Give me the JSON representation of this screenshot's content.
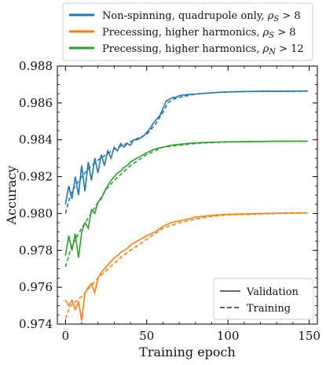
{
  "chart_data": {
    "type": "line",
    "title": "",
    "xlabel": "Training epoch",
    "ylabel": "Accuracy",
    "xlim": [
      -5,
      155
    ],
    "ylim": [
      0.974,
      0.988
    ],
    "xticks": [
      0,
      50,
      100,
      150
    ],
    "yticks": [
      0.974,
      0.976,
      0.978,
      0.98,
      0.982,
      0.984,
      0.986,
      0.988
    ],
    "ytick_labels": [
      "0.974",
      "0.976",
      "0.978",
      "0.980",
      "0.982",
      "0.984",
      "0.986",
      "0.988"
    ],
    "grid": false,
    "legend_top": {
      "placement": "above plot",
      "entries": [
        {
          "prefix": "Non-spinning, quadrupole only, ",
          "var": "ρ",
          "sub": "S",
          "suffix": " > 8",
          "color": "#1f77b4"
        },
        {
          "prefix": "Precessing, higher harmonics, ",
          "var": "ρ",
          "sub": "S",
          "suffix": " > 8",
          "color": "#ff7f0e"
        },
        {
          "prefix": "Precessing, higher harmonics, ",
          "var": "ρ",
          "sub": "N",
          "suffix": " > 12",
          "color": "#2ca02c"
        }
      ]
    },
    "legend_style": {
      "placement": "lower right",
      "entries": [
        {
          "label": "Validation",
          "linestyle": "solid",
          "color": "#666666"
        },
        {
          "label": "Training",
          "linestyle": "dashed",
          "color": "#666666"
        }
      ]
    },
    "series": [
      {
        "color": "#1f77b4",
        "validation": [
          [
            0,
            0.9805
          ],
          [
            2,
            0.9815
          ],
          [
            4,
            0.9808
          ],
          [
            6,
            0.982
          ],
          [
            8,
            0.981
          ],
          [
            10,
            0.9826
          ],
          [
            12,
            0.9812
          ],
          [
            14,
            0.9828
          ],
          [
            16,
            0.9818
          ],
          [
            18,
            0.983
          ],
          [
            20,
            0.9822
          ],
          [
            22,
            0.9832
          ],
          [
            24,
            0.9826
          ],
          [
            26,
            0.9834
          ],
          [
            28,
            0.983
          ],
          [
            30,
            0.9836
          ],
          [
            32,
            0.9834
          ],
          [
            34,
            0.9838
          ],
          [
            36,
            0.9836
          ],
          [
            38,
            0.9838
          ],
          [
            40,
            0.9837
          ],
          [
            42,
            0.984
          ],
          [
            44,
            0.984
          ],
          [
            46,
            0.9841
          ],
          [
            48,
            0.9842
          ],
          [
            50,
            0.9844
          ],
          [
            52,
            0.9846
          ],
          [
            54,
            0.9849
          ],
          [
            56,
            0.9851
          ],
          [
            58,
            0.9853
          ],
          [
            60,
            0.9857
          ],
          [
            62,
            0.9861
          ],
          [
            64,
            0.9862
          ],
          [
            66,
            0.9863
          ],
          [
            68,
            0.9863
          ],
          [
            70,
            0.9864
          ],
          [
            75,
            0.98645
          ],
          [
            80,
            0.98648
          ],
          [
            85,
            0.98652
          ],
          [
            90,
            0.98655
          ],
          [
            95,
            0.98658
          ],
          [
            100,
            0.9866
          ],
          [
            110,
            0.98662
          ],
          [
            120,
            0.98663
          ],
          [
            130,
            0.98664
          ],
          [
            140,
            0.98664
          ],
          [
            149,
            0.98665
          ]
        ],
        "training": [
          [
            0,
            0.98
          ],
          [
            3,
            0.981
          ],
          [
            6,
            0.9815
          ],
          [
            10,
            0.982
          ],
          [
            15,
            0.9825
          ],
          [
            20,
            0.9829
          ],
          [
            25,
            0.9832
          ],
          [
            30,
            0.9835
          ],
          [
            35,
            0.9837
          ],
          [
            40,
            0.9839
          ],
          [
            45,
            0.9841
          ],
          [
            50,
            0.9843
          ],
          [
            55,
            0.9848
          ],
          [
            60,
            0.9855
          ],
          [
            63,
            0.986
          ],
          [
            66,
            0.9862
          ],
          [
            70,
            0.9863
          ],
          [
            80,
            0.98648
          ],
          [
            90,
            0.98655
          ],
          [
            100,
            0.9866
          ],
          [
            120,
            0.98663
          ],
          [
            149,
            0.98664
          ]
        ]
      },
      {
        "color": "#ff7f0e",
        "validation": [
          [
            0,
            0.9753
          ],
          [
            2,
            0.975
          ],
          [
            4,
            0.9753
          ],
          [
            6,
            0.9748
          ],
          [
            8,
            0.9752
          ],
          [
            10,
            0.9742
          ],
          [
            12,
            0.9757
          ],
          [
            14,
            0.976
          ],
          [
            16,
            0.9762
          ],
          [
            18,
            0.9757
          ],
          [
            20,
            0.9765
          ],
          [
            22,
            0.9768
          ],
          [
            24,
            0.977
          ],
          [
            26,
            0.9772
          ],
          [
            28,
            0.9774
          ],
          [
            30,
            0.9776
          ],
          [
            32,
            0.9777
          ],
          [
            34,
            0.9779
          ],
          [
            36,
            0.978
          ],
          [
            38,
            0.9781
          ],
          [
            40,
            0.9783
          ],
          [
            42,
            0.9784
          ],
          [
            44,
            0.9785
          ],
          [
            46,
            0.9786
          ],
          [
            48,
            0.9787
          ],
          [
            50,
            0.9788
          ],
          [
            55,
            0.979
          ],
          [
            60,
            0.9793
          ],
          [
            65,
            0.9795
          ],
          [
            70,
            0.9796
          ],
          [
            75,
            0.9797
          ],
          [
            80,
            0.9798
          ],
          [
            85,
            0.97985
          ],
          [
            90,
            0.9799
          ],
          [
            95,
            0.97993
          ],
          [
            100,
            0.97995
          ],
          [
            110,
            0.97998
          ],
          [
            120,
            0.98
          ],
          [
            130,
            0.98002
          ],
          [
            140,
            0.98003
          ],
          [
            149,
            0.98004
          ]
        ],
        "training": [
          [
            0,
            0.9743
          ],
          [
            3,
            0.975
          ],
          [
            6,
            0.9752
          ],
          [
            10,
            0.9755
          ],
          [
            15,
            0.976
          ],
          [
            20,
            0.9765
          ],
          [
            25,
            0.9769
          ],
          [
            30,
            0.9773
          ],
          [
            35,
            0.9777
          ],
          [
            40,
            0.978
          ],
          [
            45,
            0.9783
          ],
          [
            50,
            0.9786
          ],
          [
            55,
            0.9789
          ],
          [
            60,
            0.9792
          ],
          [
            70,
            0.9795
          ],
          [
            80,
            0.9797
          ],
          [
            90,
            0.97985
          ],
          [
            100,
            0.97993
          ],
          [
            120,
            0.97998
          ],
          [
            149,
            0.98003
          ]
        ]
      },
      {
        "color": "#2ca02c",
        "validation": [
          [
            0,
            0.9777
          ],
          [
            2,
            0.9788
          ],
          [
            4,
            0.978
          ],
          [
            6,
            0.9789
          ],
          [
            8,
            0.9776
          ],
          [
            10,
            0.979
          ],
          [
            12,
            0.9795
          ],
          [
            14,
            0.9792
          ],
          [
            16,
            0.9802
          ],
          [
            18,
            0.98
          ],
          [
            20,
            0.9806
          ],
          [
            22,
            0.9808
          ],
          [
            24,
            0.9812
          ],
          [
            26,
            0.9815
          ],
          [
            28,
            0.9818
          ],
          [
            30,
            0.982
          ],
          [
            32,
            0.9822
          ],
          [
            34,
            0.9823
          ],
          [
            36,
            0.9825
          ],
          [
            38,
            0.9826
          ],
          [
            40,
            0.9828
          ],
          [
            42,
            0.9829
          ],
          [
            44,
            0.983
          ],
          [
            46,
            0.9831
          ],
          [
            48,
            0.9832
          ],
          [
            50,
            0.9833
          ],
          [
            55,
            0.9835
          ],
          [
            60,
            0.9836
          ],
          [
            65,
            0.9837
          ],
          [
            70,
            0.98375
          ],
          [
            75,
            0.9838
          ],
          [
            80,
            0.98383
          ],
          [
            85,
            0.98385
          ],
          [
            90,
            0.98387
          ],
          [
            95,
            0.98388
          ],
          [
            100,
            0.98389
          ],
          [
            110,
            0.9839
          ],
          [
            120,
            0.98391
          ],
          [
            130,
            0.98392
          ],
          [
            140,
            0.98392
          ],
          [
            149,
            0.98393
          ]
        ],
        "training": [
          [
            0,
            0.9771
          ],
          [
            3,
            0.978
          ],
          [
            6,
            0.9786
          ],
          [
            10,
            0.9792
          ],
          [
            15,
            0.9799
          ],
          [
            20,
            0.9806
          ],
          [
            25,
            0.9813
          ],
          [
            30,
            0.9818
          ],
          [
            35,
            0.9822
          ],
          [
            40,
            0.9826
          ],
          [
            45,
            0.9829
          ],
          [
            50,
            0.9832
          ],
          [
            55,
            0.9834
          ],
          [
            60,
            0.9836
          ],
          [
            70,
            0.9837
          ],
          [
            80,
            0.9838
          ],
          [
            90,
            0.98385
          ],
          [
            100,
            0.98388
          ],
          [
            120,
            0.98391
          ],
          [
            149,
            0.98393
          ]
        ]
      }
    ]
  }
}
